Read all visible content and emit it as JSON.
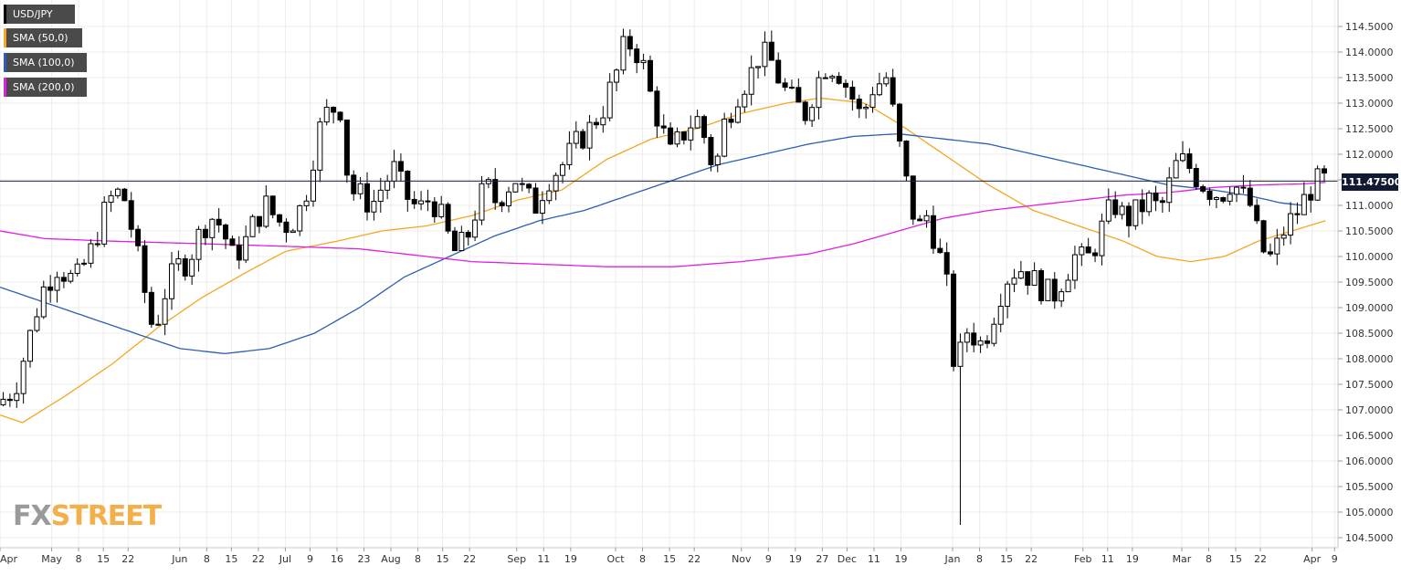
{
  "legend": [
    {
      "label": "USD/JPY",
      "color": "#000000"
    },
    {
      "label": "SMA (50,0)",
      "color": "#f5a623"
    },
    {
      "label": "SMA (100,0)",
      "color": "#2c5fb3"
    },
    {
      "label": "SMA (200,0)",
      "color": "#e020e0"
    }
  ],
  "current_price": "111.47500",
  "logo": {
    "part1": "FX",
    "part2": "STREET"
  },
  "chart_data": {
    "type": "candlestick",
    "symbol": "USD/JPY",
    "ylim": [
      104.3,
      114.8
    ],
    "ytick_values": [
      104.5,
      105.0,
      105.5,
      106.0,
      106.5,
      107.0,
      107.5,
      108.0,
      108.5,
      109.0,
      109.5,
      110.0,
      110.5,
      111.0,
      111.5,
      112.0,
      112.5,
      113.0,
      113.5,
      114.0,
      114.5
    ],
    "ytick_labels": [
      "104.5000",
      "105.0000",
      "105.5000",
      "106.0000",
      "106.5000",
      "107.0000",
      "107.5000",
      "108.0000",
      "108.5000",
      "109.0000",
      "109.5000",
      "110.0000",
      "110.5000",
      "111.0000",
      "111.5000",
      "112.0000",
      "112.5000",
      "113.0000",
      "113.5000",
      "114.0000",
      "114.5000"
    ],
    "x_labels": [
      "Apr",
      "May",
      "8",
      "15",
      "22",
      "Jun",
      "8",
      "15",
      "22",
      "Jul",
      "9",
      "16",
      "23",
      "Aug",
      "8",
      "15",
      "22",
      "Sep",
      "11",
      "19",
      "Oct",
      "8",
      "15",
      "22",
      "Nov",
      "9",
      "19",
      "27",
      "Dec",
      "11",
      "19",
      "Jan",
      "8",
      "15",
      "22",
      "Feb",
      "11",
      "19",
      "Mar",
      "8",
      "15",
      "22",
      "Apr",
      "9"
    ],
    "x_label_index": [
      0,
      23,
      35,
      46,
      57,
      80,
      92,
      103,
      115,
      127,
      138,
      150,
      162,
      174,
      186,
      197,
      209,
      230,
      242,
      254,
      274,
      286,
      298,
      309,
      330,
      342,
      354,
      366,
      377,
      389,
      401,
      424,
      436,
      448,
      459,
      482,
      493,
      504,
      526,
      538,
      550,
      561,
      584,
      594
    ],
    "num_bars": 598,
    "last_price": 111.475,
    "waypoints": [
      [
        0,
        107.1
      ],
      [
        8,
        107.4
      ],
      [
        14,
        108.3
      ],
      [
        20,
        109.3
      ],
      [
        27,
        109.8
      ],
      [
        35,
        109.5
      ],
      [
        42,
        110.1
      ],
      [
        50,
        111.1
      ],
      [
        56,
        111.3
      ],
      [
        61,
        110.4
      ],
      [
        66,
        109.3
      ],
      [
        70,
        108.5
      ],
      [
        75,
        109.3
      ],
      [
        80,
        109.8
      ],
      [
        85,
        109.9
      ],
      [
        90,
        110.4
      ],
      [
        95,
        110.8
      ],
      [
        100,
        110.6
      ],
      [
        105,
        110.0
      ],
      [
        110,
        110.2
      ],
      [
        115,
        110.7
      ],
      [
        120,
        111.0
      ],
      [
        125,
        110.7
      ],
      [
        130,
        110.6
      ],
      [
        134,
        110.8
      ],
      [
        138,
        111.3
      ],
      [
        143,
        112.4
      ],
      [
        148,
        112.9
      ],
      [
        153,
        112.9
      ],
      [
        157,
        111.3
      ],
      [
        162,
        111.2
      ],
      [
        167,
        111.0
      ],
      [
        172,
        111.4
      ],
      [
        177,
        111.7
      ],
      [
        182,
        111.2
      ],
      [
        188,
        110.9
      ],
      [
        192,
        111.1
      ],
      [
        196,
        111.0
      ],
      [
        200,
        110.5
      ],
      [
        204,
        110.1
      ],
      [
        209,
        110.3
      ],
      [
        214,
        111.0
      ],
      [
        218,
        111.4
      ],
      [
        222,
        111.1
      ],
      [
        227,
        111.3
      ],
      [
        230,
        111.6
      ],
      [
        235,
        111.2
      ],
      [
        240,
        111.0
      ],
      [
        245,
        111.5
      ],
      [
        252,
        111.8
      ],
      [
        258,
        112.2
      ],
      [
        264,
        112.5
      ],
      [
        270,
        112.9
      ],
      [
        276,
        113.6
      ],
      [
        280,
        114.2
      ],
      [
        284,
        114.1
      ],
      [
        288,
        113.7
      ],
      [
        292,
        113.0
      ],
      [
        296,
        112.5
      ],
      [
        300,
        112.0
      ],
      [
        304,
        112.3
      ],
      [
        309,
        112.6
      ],
      [
        313,
        112.7
      ],
      [
        317,
        112.0
      ],
      [
        320,
        111.7
      ],
      [
        324,
        112.6
      ],
      [
        330,
        113.2
      ],
      [
        336,
        113.6
      ],
      [
        340,
        114.0
      ],
      [
        345,
        113.8
      ],
      [
        350,
        113.3
      ],
      [
        355,
        113.0
      ],
      [
        360,
        112.8
      ],
      [
        365,
        113.4
      ],
      [
        370,
        113.8
      ],
      [
        375,
        113.6
      ],
      [
        380,
        113.2
      ],
      [
        385,
        112.7
      ],
      [
        390,
        113.3
      ],
      [
        396,
        113.5
      ],
      [
        400,
        112.6
      ],
      [
        403,
        111.9
      ],
      [
        406,
        111.2
      ],
      [
        410,
        110.5
      ],
      [
        414,
        110.8
      ],
      [
        418,
        110.3
      ],
      [
        421,
        109.8
      ],
      [
        424,
        109.2
      ],
      [
        426,
        108.0
      ],
      [
        428,
        107.6
      ],
      [
        430,
        108.6
      ],
      [
        434,
        108.5
      ],
      [
        438,
        108.3
      ],
      [
        442,
        108.6
      ],
      [
        446,
        109.2
      ],
      [
        450,
        109.6
      ],
      [
        455,
        109.8
      ],
      [
        460,
        109.6
      ],
      [
        465,
        109.4
      ],
      [
        470,
        109.2
      ],
      [
        475,
        109.6
      ],
      [
        480,
        110.0
      ],
      [
        485,
        109.9
      ],
      [
        490,
        110.3
      ],
      [
        494,
        110.8
      ],
      [
        498,
        111.0
      ],
      [
        503,
        110.7
      ],
      [
        508,
        110.9
      ],
      [
        513,
        111.1
      ],
      [
        518,
        110.9
      ],
      [
        522,
        111.4
      ],
      [
        526,
        111.9
      ],
      [
        530,
        111.8
      ],
      [
        535,
        111.5
      ],
      [
        540,
        111.3
      ],
      [
        545,
        111.2
      ],
      [
        550,
        111.5
      ],
      [
        554,
        111.2
      ],
      [
        558,
        111.0
      ],
      [
        562,
        110.3
      ],
      [
        566,
        109.9
      ],
      [
        570,
        110.2
      ],
      [
        574,
        110.6
      ],
      [
        578,
        110.8
      ],
      [
        582,
        111.1
      ],
      [
        586,
        111.4
      ],
      [
        589,
        111.475
      ]
    ],
    "sma50": [
      [
        0,
        106.9
      ],
      [
        10,
        106.75
      ],
      [
        30,
        107.3
      ],
      [
        50,
        107.9
      ],
      [
        70,
        108.6
      ],
      [
        90,
        109.2
      ],
      [
        110,
        109.7
      ],
      [
        127,
        110.1
      ],
      [
        150,
        110.3
      ],
      [
        170,
        110.5
      ],
      [
        190,
        110.6
      ],
      [
        210,
        110.8
      ],
      [
        230,
        111.1
      ],
      [
        250,
        111.3
      ],
      [
        270,
        111.9
      ],
      [
        290,
        112.3
      ],
      [
        310,
        112.5
      ],
      [
        330,
        112.8
      ],
      [
        350,
        113.0
      ],
      [
        365,
        113.1
      ],
      [
        385,
        113.0
      ],
      [
        400,
        112.6
      ],
      [
        420,
        112.0
      ],
      [
        440,
        111.4
      ],
      [
        460,
        110.9
      ],
      [
        480,
        110.6
      ],
      [
        500,
        110.3
      ],
      [
        515,
        110.0
      ],
      [
        530,
        109.9
      ],
      [
        545,
        110.0
      ],
      [
        560,
        110.3
      ],
      [
        575,
        110.5
      ],
      [
        590,
        110.7
      ]
    ],
    "sma100": [
      [
        0,
        109.4
      ],
      [
        20,
        109.1
      ],
      [
        40,
        108.8
      ],
      [
        60,
        108.5
      ],
      [
        80,
        108.2
      ],
      [
        100,
        108.1
      ],
      [
        120,
        108.2
      ],
      [
        140,
        108.5
      ],
      [
        160,
        109.0
      ],
      [
        180,
        109.6
      ],
      [
        200,
        110.0
      ],
      [
        220,
        110.4
      ],
      [
        240,
        110.7
      ],
      [
        260,
        110.9
      ],
      [
        280,
        111.2
      ],
      [
        300,
        111.5
      ],
      [
        320,
        111.8
      ],
      [
        340,
        112.0
      ],
      [
        360,
        112.2
      ],
      [
        380,
        112.35
      ],
      [
        400,
        112.4
      ],
      [
        420,
        112.3
      ],
      [
        440,
        112.2
      ],
      [
        460,
        112.0
      ],
      [
        480,
        111.8
      ],
      [
        500,
        111.6
      ],
      [
        520,
        111.4
      ],
      [
        540,
        111.3
      ],
      [
        555,
        111.2
      ],
      [
        570,
        111.05
      ],
      [
        580,
        111.0
      ]
    ],
    "sma200": [
      [
        0,
        110.5
      ],
      [
        20,
        110.35
      ],
      [
        50,
        110.3
      ],
      [
        90,
        110.25
      ],
      [
        127,
        110.2
      ],
      [
        160,
        110.15
      ],
      [
        190,
        110.0
      ],
      [
        210,
        109.9
      ],
      [
        240,
        109.85
      ],
      [
        270,
        109.8
      ],
      [
        300,
        109.8
      ],
      [
        330,
        109.9
      ],
      [
        360,
        110.05
      ],
      [
        380,
        110.25
      ],
      [
        400,
        110.5
      ],
      [
        420,
        110.75
      ],
      [
        440,
        110.9
      ],
      [
        460,
        111.0
      ],
      [
        480,
        111.1
      ],
      [
        500,
        111.2
      ],
      [
        520,
        111.25
      ],
      [
        540,
        111.35
      ],
      [
        560,
        111.4
      ],
      [
        580,
        111.42
      ],
      [
        590,
        111.45
      ]
    ]
  }
}
